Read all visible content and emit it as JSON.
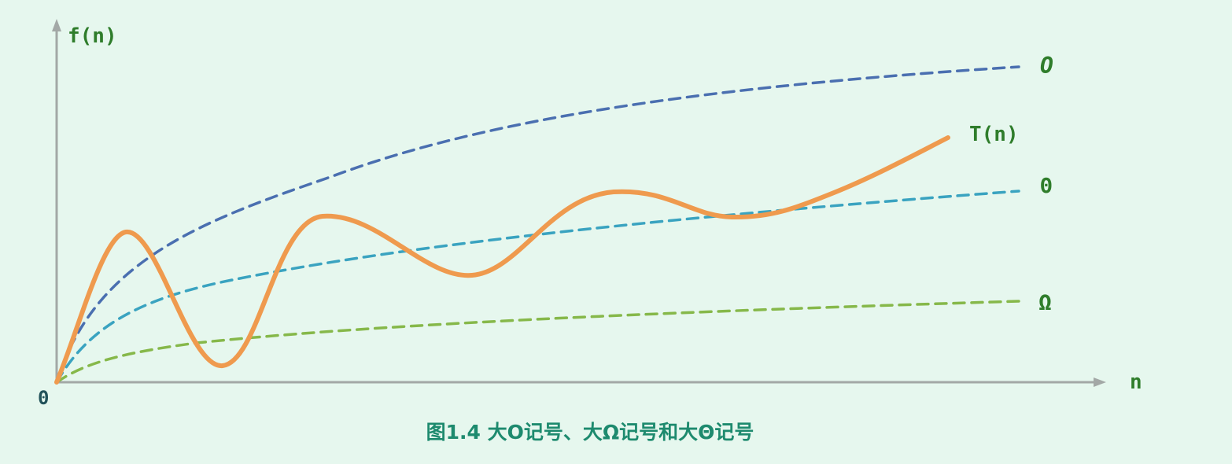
{
  "colors": {
    "background": "#e6f7ee",
    "axis": "#a3a8a6",
    "label_green": "#2f7d2b",
    "origin_label": "#22525a",
    "caption": "#1d8a6e",
    "big_o": "#4a6fb0",
    "big_theta": "#3aa3c0",
    "big_omega": "#86b84a",
    "t_n": "#ef9a4e"
  },
  "axes": {
    "y_label": "f(n)",
    "x_label": "n",
    "origin": "0"
  },
  "curves": {
    "big_o": {
      "label": "O",
      "style": "dashed"
    },
    "big_theta": {
      "label": "Θ",
      "style": "dashed"
    },
    "big_omega": {
      "label": "Ω",
      "style": "dashed"
    },
    "t_n": {
      "label": "T(n)",
      "style": "solid"
    }
  },
  "caption": "图1.4 大O记号、大Ω记号和大Θ记号"
}
